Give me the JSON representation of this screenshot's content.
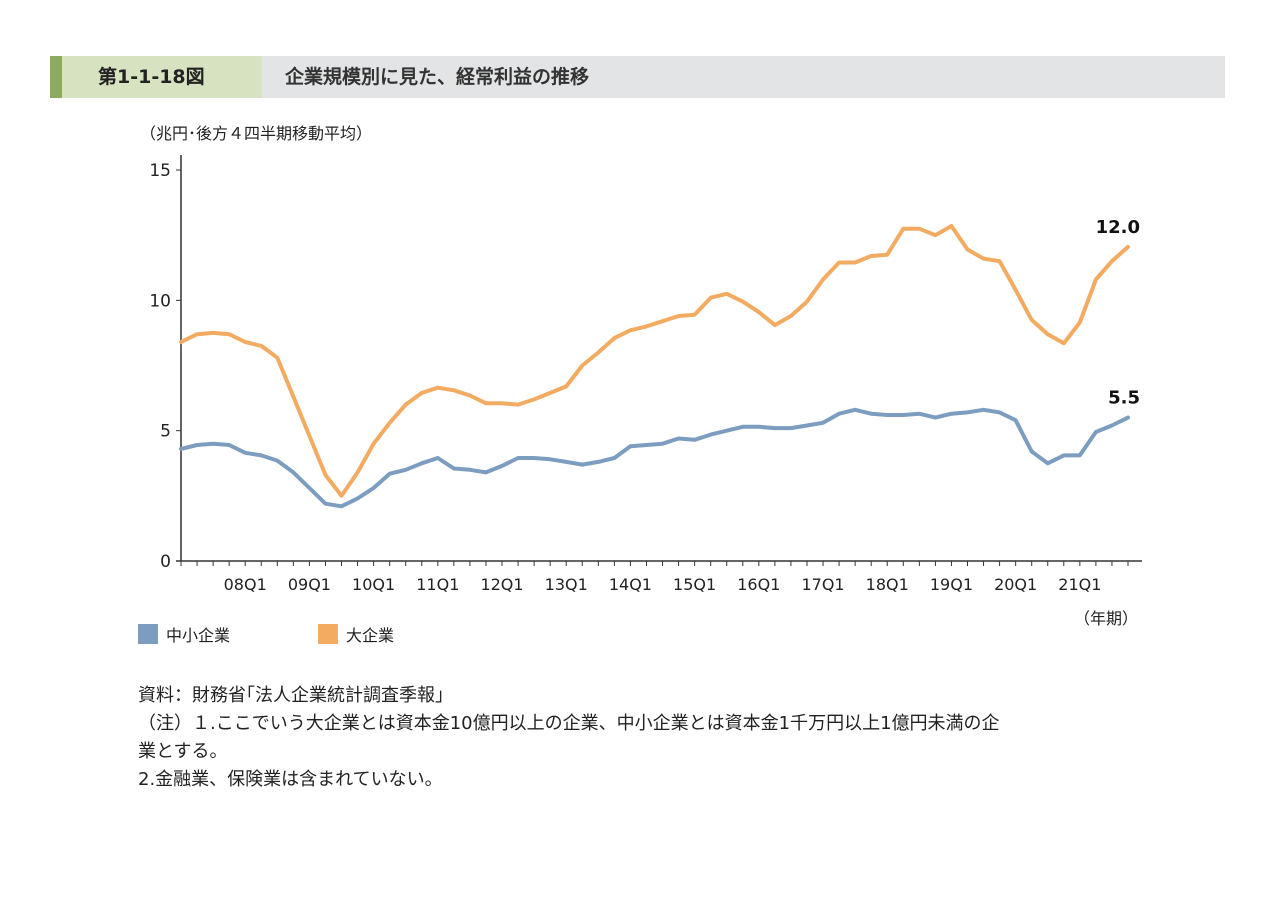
{
  "figure": {
    "number": "第1-1-18図",
    "title": "企業規模別に見た、経常利益の推移"
  },
  "chart_data": {
    "type": "line",
    "y_unit_label": "（兆円･後方４四半期移動平均）",
    "x_unit_label": "（年期）",
    "ylim": [
      0,
      15
    ],
    "y_ticks": [
      0,
      5,
      10,
      15
    ],
    "x_tick_labels": [
      "08Q1",
      "09Q1",
      "10Q1",
      "11Q1",
      "12Q1",
      "13Q1",
      "14Q1",
      "15Q1",
      "16Q1",
      "17Q1",
      "18Q1",
      "19Q1",
      "20Q1",
      "21Q1"
    ],
    "x_start": "2007Q1",
    "grid": false,
    "legend_position": "bottom-left",
    "series": [
      {
        "name": "中小企業",
        "color": "#7c9dbf",
        "end_label": "5.5",
        "values": [
          4.3,
          4.45,
          4.5,
          4.45,
          4.15,
          4.05,
          3.85,
          3.4,
          2.8,
          2.2,
          2.1,
          2.4,
          2.8,
          3.35,
          3.5,
          3.75,
          3.95,
          3.55,
          3.5,
          3.4,
          3.65,
          3.95,
          3.95,
          3.9,
          3.8,
          3.7,
          3.8,
          3.95,
          4.4,
          4.45,
          4.5,
          4.7,
          4.65,
          4.85,
          5.0,
          5.15,
          5.15,
          5.1,
          5.1,
          5.2,
          5.3,
          5.65,
          5.8,
          5.65,
          5.6,
          5.6,
          5.65,
          5.5,
          5.65,
          5.7,
          5.8,
          5.7,
          5.4,
          4.2,
          3.75,
          4.05,
          4.05,
          4.95,
          5.2,
          5.5
        ]
      },
      {
        "name": "大企業",
        "color": "#f2ab61",
        "end_label": "12.0",
        "values": [
          8.4,
          8.7,
          8.75,
          8.7,
          8.4,
          8.25,
          7.8,
          6.3,
          4.8,
          3.3,
          2.5,
          3.4,
          4.5,
          5.3,
          6.0,
          6.45,
          6.65,
          6.55,
          6.35,
          6.05,
          6.05,
          6.0,
          6.2,
          6.45,
          6.7,
          7.5,
          8.0,
          8.55,
          8.85,
          9.0,
          9.2,
          9.4,
          9.45,
          10.1,
          10.25,
          9.95,
          9.55,
          9.05,
          9.4,
          9.95,
          10.8,
          11.45,
          11.45,
          11.7,
          11.75,
          12.75,
          12.75,
          12.5,
          12.85,
          11.95,
          11.6,
          11.5,
          10.4,
          9.25,
          8.7,
          8.35,
          9.15,
          10.8,
          11.5,
          12.05
        ]
      }
    ]
  },
  "legend": [
    {
      "label": "中小企業",
      "color": "#7c9dbf"
    },
    {
      "label": "大企業",
      "color": "#f2ab61"
    }
  ],
  "notes": {
    "source": "資料：財務省｢法人企業統計調査季報｣",
    "note1_line1": "（注）１.ここでいう大企業とは資本金10億円以上の企業、中小企業とは資本金1千万円以上1億円未満の企",
    "note1_line2": "業とする。",
    "note2": "2.金融業、保険業は含まれていない。"
  }
}
